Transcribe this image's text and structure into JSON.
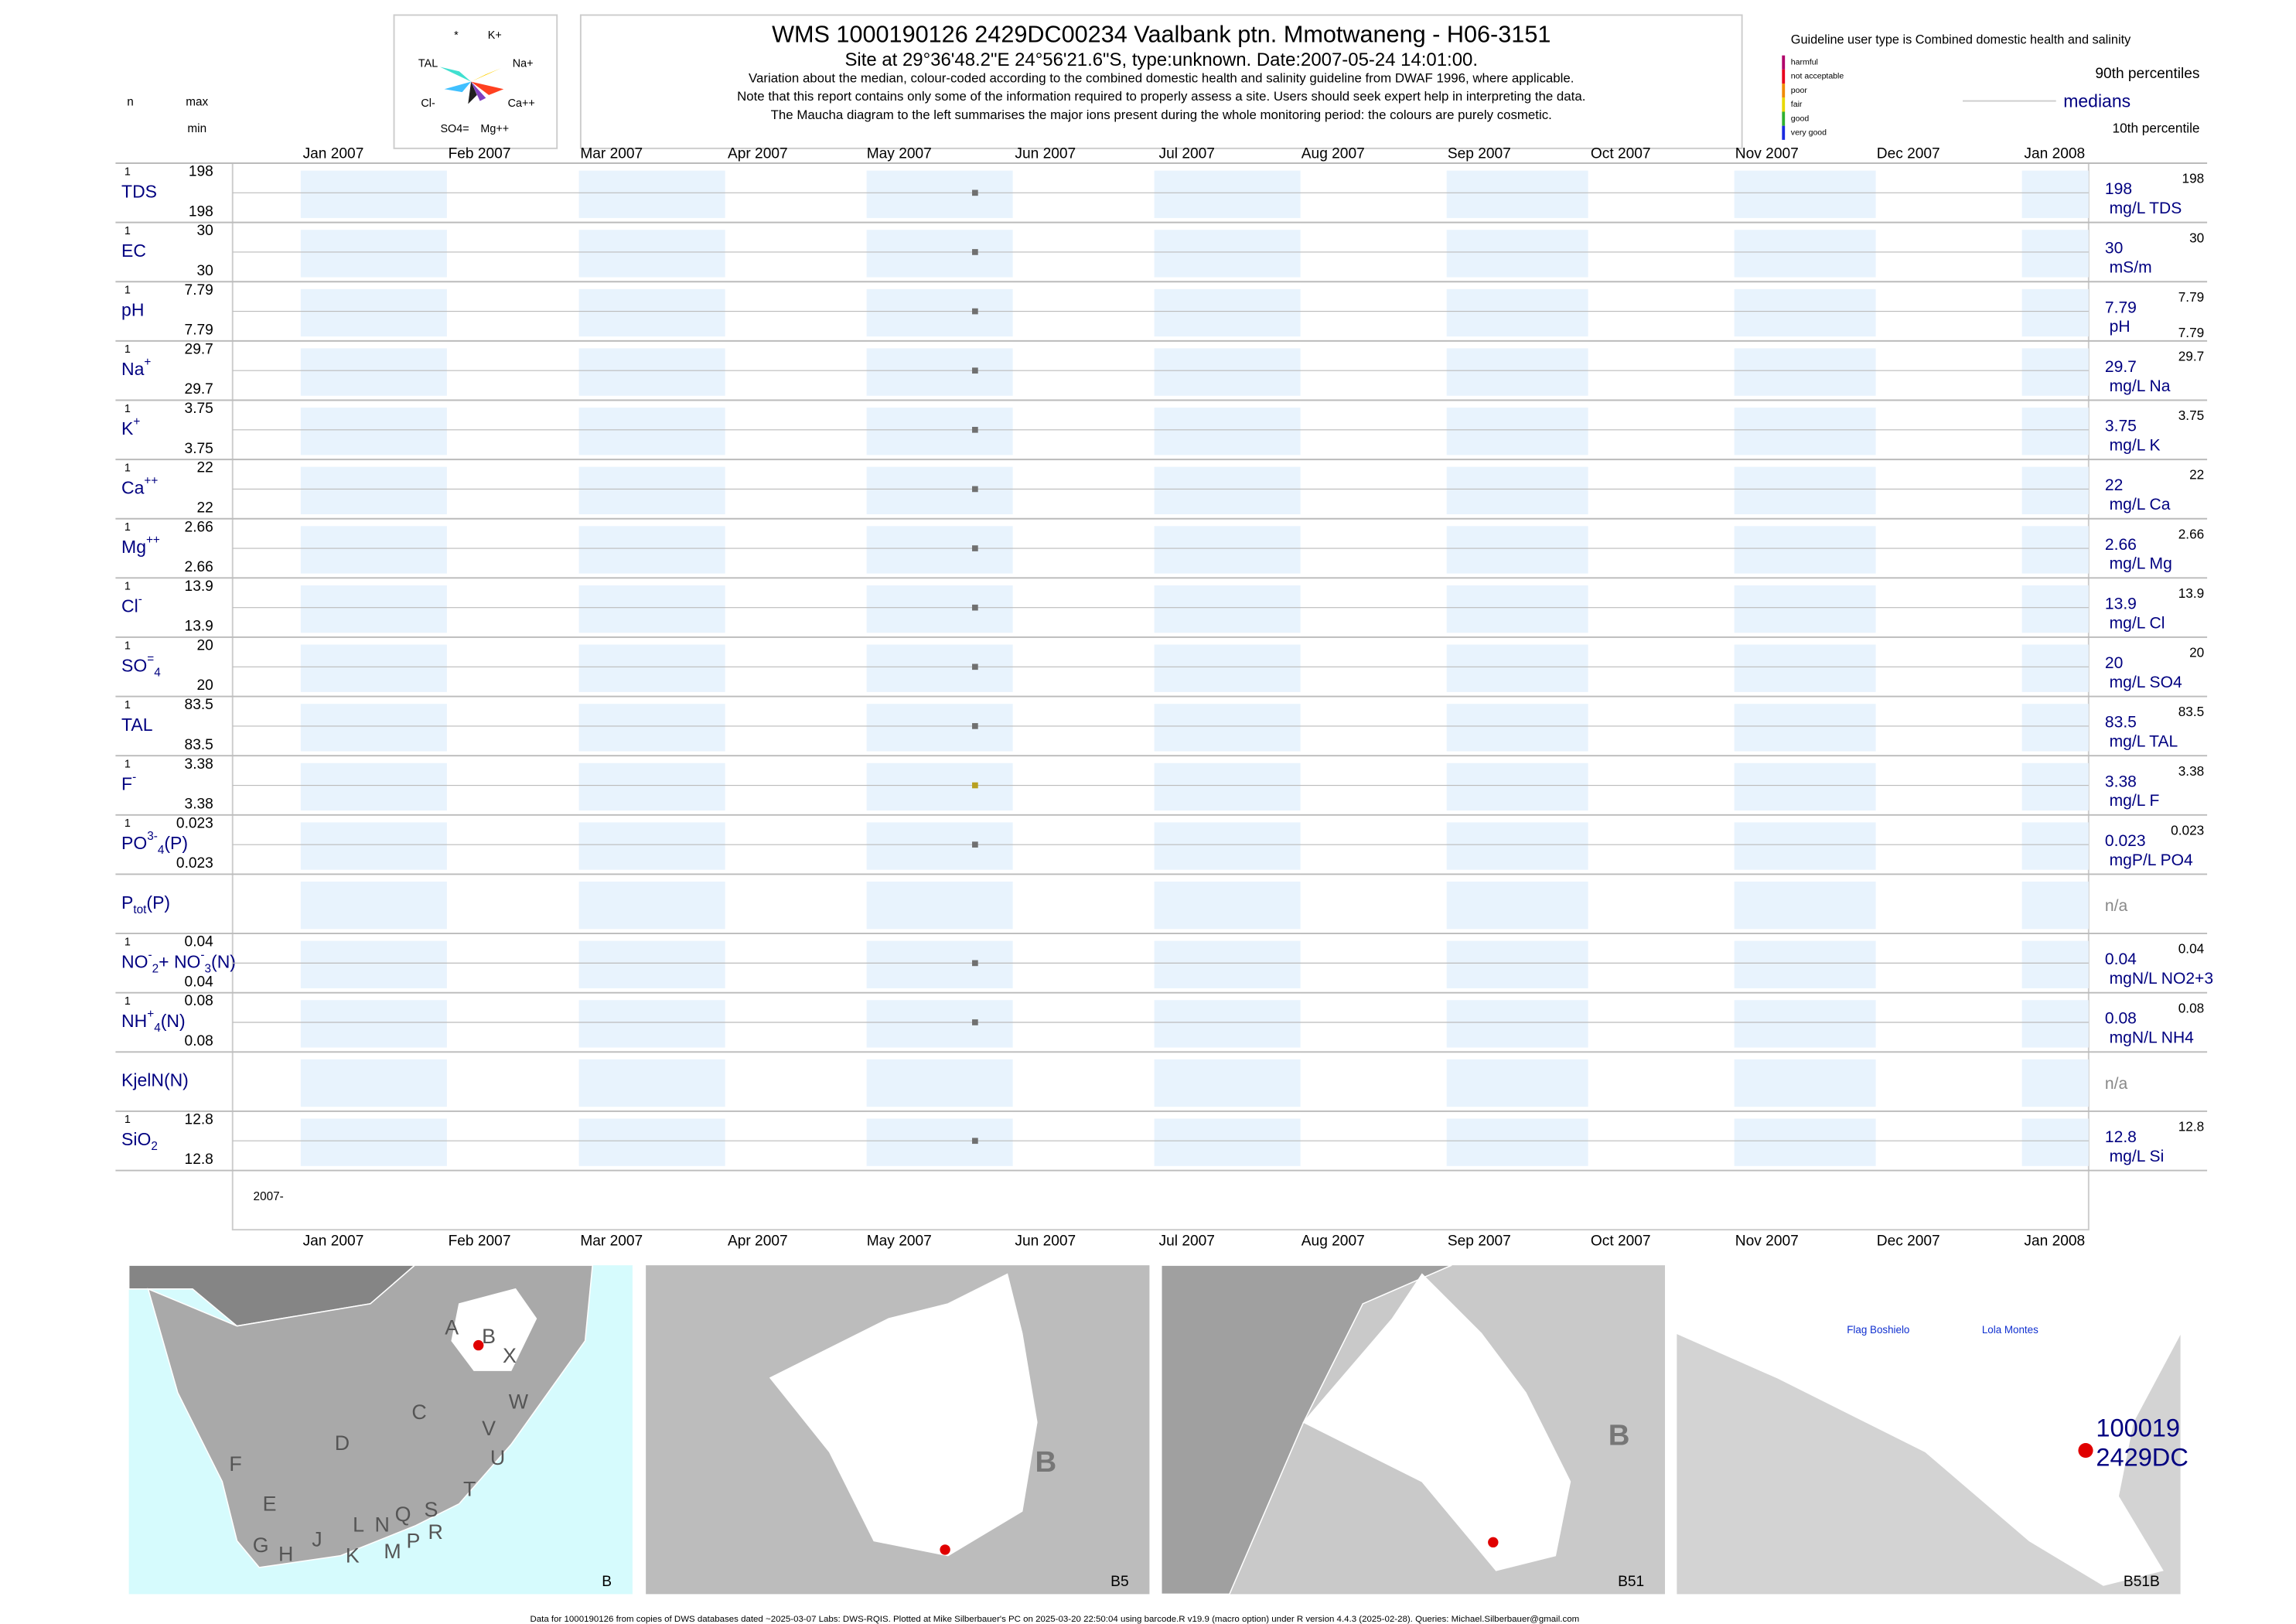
{
  "header": {
    "title": "WMS 1000190126 2429DC00234 Vaalbank ptn. Mmotwaneng - H06-3151",
    "subtitle": "Site at 29°36'48.2\"E 24°56'21.6\"S, type:unknown. Date:2007-05-24 14:01:00.",
    "notes": [
      "Variation about the median,  colour-coded according to the combined domestic health and salinity guideline from DWAF 1996, where applicable.",
      "Note that this report contains only some of the information required to properly assess a site. Users should seek expert help in interpreting the data.",
      "The Maucha diagram to the left summarises the major ions present during the whole monitoring period: the colours are purely cosmetic."
    ],
    "column_heads": [
      "n",
      "max",
      "min"
    ]
  },
  "maucha": {
    "labels": [
      "*",
      "K+",
      "TAL",
      "Na+",
      "Cl-",
      "Ca++",
      "SO4=",
      "Mg++"
    ]
  },
  "legend": {
    "guideline": "Guideline user type is Combined domestic health and salinity",
    "classes": [
      {
        "name": "harmful",
        "color": "#b0006a"
      },
      {
        "name": "not acceptable",
        "color": "#e8001c"
      },
      {
        "name": "poor",
        "color": "#f08a00"
      },
      {
        "name": "fair",
        "color": "#e8d800"
      },
      {
        "name": "good",
        "color": "#30b030"
      },
      {
        "name": "very good",
        "color": "#1a2ae0"
      }
    ],
    "upper": "90th percentiles",
    "middle": "medians",
    "lower": "10th percentile"
  },
  "timeline": {
    "months": [
      "Jan 2007",
      "Feb 2007",
      "Mar 2007",
      "Apr 2007",
      "May 2007",
      "Jun 2007",
      "Jul 2007",
      "Aug 2007",
      "Sep 2007",
      "Oct 2007",
      "Nov 2007",
      "Dec 2007",
      "Jan 2008"
    ],
    "start_label": "2007-",
    "dot_color": "#707070"
  },
  "rows": [
    {
      "label": [
        [
          "TDS",
          "base"
        ]
      ],
      "n": 1,
      "max": 198,
      "min": 198,
      "value": 198,
      "unit": "mg/L TDS",
      "scale": [
        198
      ]
    },
    {
      "label": [
        [
          "EC",
          "base"
        ]
      ],
      "n": 1,
      "max": 30,
      "min": 30,
      "value": 30,
      "unit": "mS/m",
      "scale": [
        30
      ]
    },
    {
      "label": [
        [
          "pH",
          "base"
        ]
      ],
      "n": 1,
      "max": 7.79,
      "min": 7.79,
      "value": 7.79,
      "unit": "pH",
      "scale": [
        7.79,
        7.79
      ]
    },
    {
      "label": [
        [
          "Na",
          "base"
        ],
        [
          "+",
          "sup"
        ]
      ],
      "n": 1,
      "max": 29.7,
      "min": 29.7,
      "value": 29.7,
      "unit": "mg/L Na",
      "scale": [
        29.7
      ]
    },
    {
      "label": [
        [
          "K",
          "base"
        ],
        [
          "+",
          "sup"
        ]
      ],
      "n": 1,
      "max": 3.75,
      "min": 3.75,
      "value": 3.75,
      "unit": "mg/L K",
      "scale": [
        3.75
      ]
    },
    {
      "label": [
        [
          "Ca",
          "base"
        ],
        [
          "++",
          "sup"
        ]
      ],
      "n": 1,
      "max": 22,
      "min": 22,
      "value": 22,
      "unit": "mg/L Ca",
      "scale": [
        22
      ]
    },
    {
      "label": [
        [
          "Mg",
          "base"
        ],
        [
          "++",
          "sup"
        ]
      ],
      "n": 1,
      "max": 2.66,
      "min": 2.66,
      "value": 2.66,
      "unit": "mg/L Mg",
      "scale": [
        2.66
      ]
    },
    {
      "label": [
        [
          "Cl",
          "base"
        ],
        [
          "-",
          "sup"
        ]
      ],
      "n": 1,
      "max": 13.9,
      "min": 13.9,
      "value": 13.9,
      "unit": "mg/L Cl",
      "scale": [
        13.9
      ]
    },
    {
      "label": [
        [
          "SO",
          "base"
        ],
        [
          "=",
          "sup"
        ],
        [
          "4",
          "sub"
        ]
      ],
      "n": 1,
      "max": 20,
      "min": 20,
      "value": 20,
      "unit": "mg/L SO4",
      "scale": [
        20
      ]
    },
    {
      "label": [
        [
          "TAL",
          "base"
        ]
      ],
      "n": 1,
      "max": 83.5,
      "min": 83.5,
      "value": 83.5,
      "unit": "mg/L TAL",
      "scale": [
        83.5
      ]
    },
    {
      "label": [
        [
          "F",
          "base"
        ],
        [
          "-",
          "sup"
        ]
      ],
      "n": 1,
      "max": 3.38,
      "min": 3.38,
      "value": 3.38,
      "unit": "mg/L F",
      "scale": [
        3.38
      ],
      "color": "#b8a020"
    },
    {
      "label": [
        [
          "PO",
          "base"
        ],
        [
          "3-",
          "sup"
        ],
        [
          "4",
          "sub"
        ],
        [
          "(P)",
          "base"
        ]
      ],
      "n": 1,
      "max": 0.023,
      "min": 0.023,
      "value": 0.023,
      "unit": "mgP/L PO4",
      "scale": [
        0.023
      ]
    },
    {
      "label": [
        [
          "P",
          "base"
        ],
        [
          "tot",
          "sub"
        ],
        [
          "(P)",
          "base"
        ]
      ],
      "value": "n/a"
    },
    {
      "label": [
        [
          "NO",
          "base"
        ],
        [
          "-",
          "sup"
        ],
        [
          "2",
          "sub"
        ],
        [
          "+ NO",
          "base"
        ],
        [
          "-",
          "sup"
        ],
        [
          "3",
          "sub"
        ],
        [
          "(N)",
          "base"
        ]
      ],
      "n": 1,
      "max": 0.04,
      "min": 0.04,
      "value": 0.04,
      "unit": "mgN/L NO2+3",
      "scale": [
        0.04
      ]
    },
    {
      "label": [
        [
          "NH",
          "base"
        ],
        [
          "+",
          "sup"
        ],
        [
          "4",
          "sub"
        ],
        [
          "(N)",
          "base"
        ]
      ],
      "n": 1,
      "max": 0.08,
      "min": 0.08,
      "value": 0.08,
      "unit": "mgN/L NH4",
      "scale": [
        0.08
      ]
    },
    {
      "label": [
        [
          "KjelN(N)",
          "base"
        ]
      ],
      "value": "n/a"
    },
    {
      "label": [
        [
          "SiO",
          "base"
        ],
        [
          "2",
          "sub"
        ]
      ],
      "n": 1,
      "max": 12.8,
      "min": 12.8,
      "value": 12.8,
      "unit": "mg/L Si",
      "scale": [
        12.8
      ]
    }
  ],
  "maps": [
    {
      "name": "B",
      "letters": [
        "A",
        "B",
        "X",
        "W",
        "C",
        "V",
        "U",
        "D",
        "F",
        "T",
        "E",
        "S",
        "L",
        "N",
        "Q",
        "R",
        "J",
        "P",
        "G",
        "H",
        "K",
        "M"
      ]
    },
    {
      "name": "B5",
      "big": "B"
    },
    {
      "name": "B51",
      "big": "B"
    },
    {
      "name": "B51B",
      "places": [
        "Flag Boshielo",
        "Lola Montes"
      ],
      "site": [
        "100019",
        "2429DC"
      ]
    }
  ],
  "footer": "Data for 1000190126 from copies of DWS databases dated ~2025-03-07 Labs: DWS-RQIS. Plotted at Mike Silberbauer's PC on 2025-03-20 22:50:04 using barcode.R v19.9 (macro option) under R version 4.4.3 (2025-02-28). Queries: Michael.Silberbauer@gmail.com"
}
